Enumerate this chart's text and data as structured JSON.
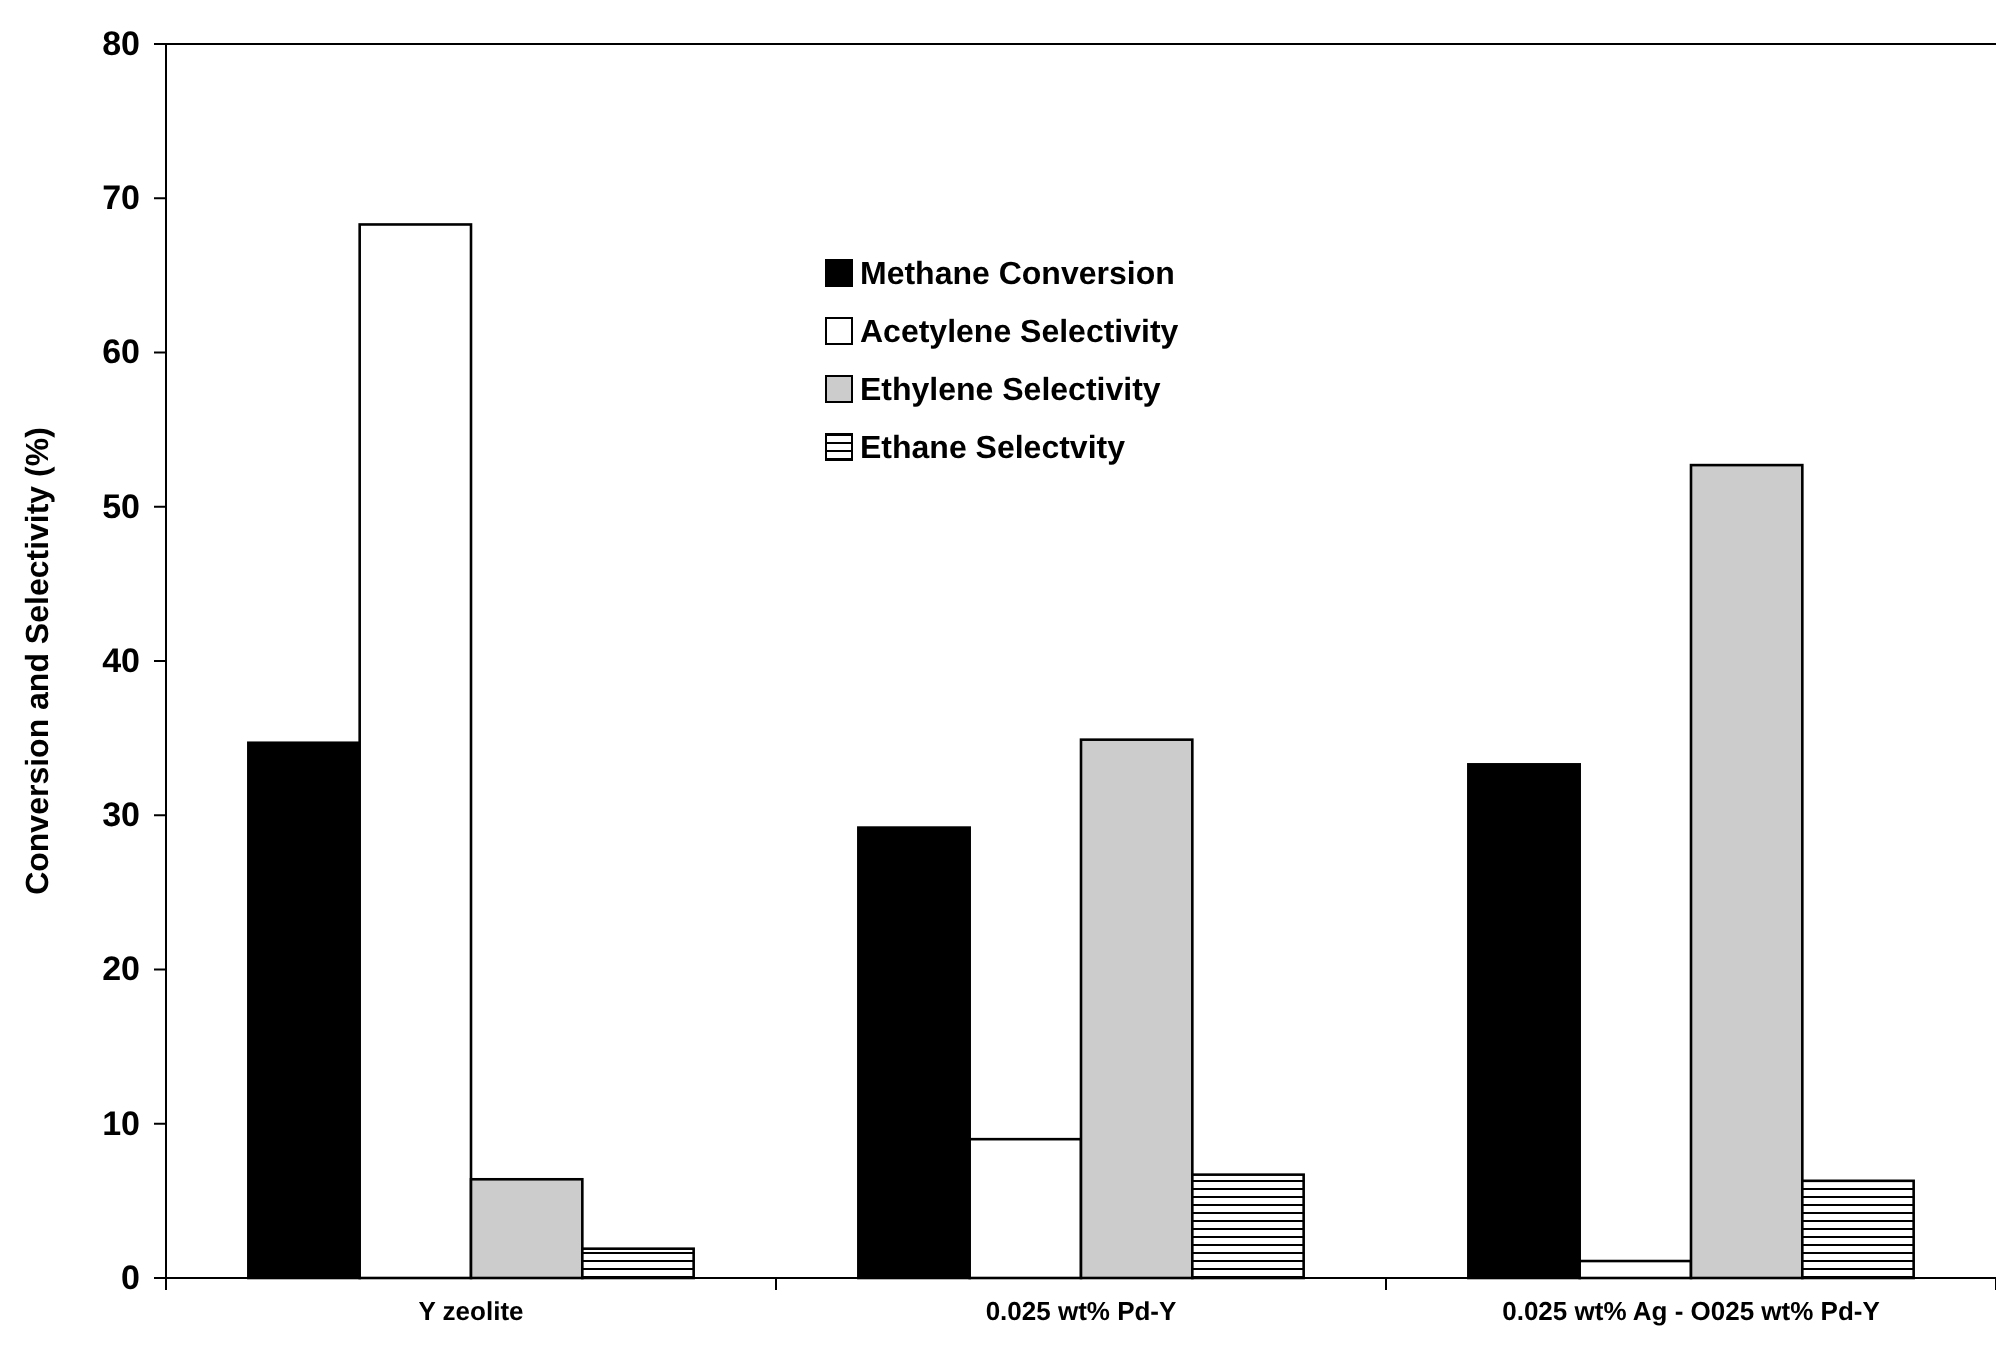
{
  "chart_data": {
    "type": "bar",
    "ylabel": "Conversion and Selectivity (%)",
    "categories": [
      "Y zeolite",
      "0.025 wt% Pd-Y",
      "0.025 wt% Ag - O025 wt% Pd-Y"
    ],
    "series": [
      {
        "name": "Methane Conversion",
        "color": "#000000",
        "values": [
          34.7,
          29.2,
          33.3
        ]
      },
      {
        "name": "Acetylene Selectivity",
        "color": "#ffffff",
        "values": [
          68.3,
          9.0,
          1.1
        ]
      },
      {
        "name": "Ethylene Selectivity",
        "color": "#cccccc",
        "values": [
          6.4,
          34.9,
          52.7
        ]
      },
      {
        "name": "Ethane Selectvity",
        "color": "#000000",
        "values": [
          1.9,
          6.7,
          6.3
        ]
      }
    ],
    "ylim": [
      0,
      80
    ],
    "yticks": [
      0,
      10,
      20,
      30,
      40,
      50,
      60,
      70,
      80
    ],
    "grid": false,
    "legend": "top"
  }
}
